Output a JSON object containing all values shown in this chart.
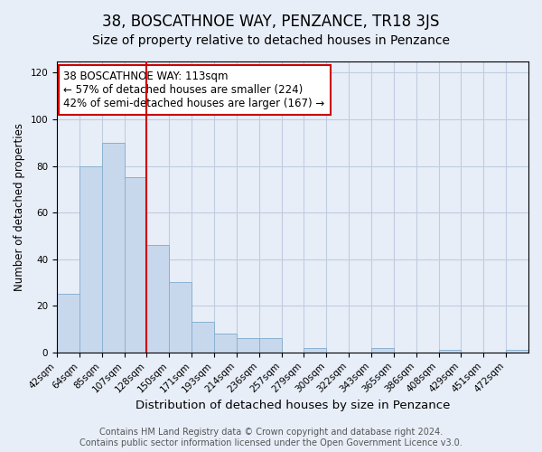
{
  "title": "38, BOSCATHNOE WAY, PENZANCE, TR18 3JS",
  "subtitle": "Size of property relative to detached houses in Penzance",
  "xlabel": "Distribution of detached houses by size in Penzance",
  "ylabel": "Number of detached properties",
  "bar_labels": [
    "42sqm",
    "64sqm",
    "85sqm",
    "107sqm",
    "128sqm",
    "150sqm",
    "171sqm",
    "193sqm",
    "214sqm",
    "236sqm",
    "257sqm",
    "279sqm",
    "300sqm",
    "322sqm",
    "343sqm",
    "365sqm",
    "386sqm",
    "408sqm",
    "429sqm",
    "451sqm",
    "472sqm"
  ],
  "bar_values": [
    25,
    80,
    90,
    75,
    46,
    30,
    13,
    8,
    6,
    6,
    0,
    2,
    0,
    0,
    2,
    0,
    0,
    1,
    0,
    0,
    1
  ],
  "bar_color": "#c8d8ec",
  "bar_edge_color": "#8ab0d0",
  "vline_x": 4.0,
  "vline_color": "#cc0000",
  "annotation_line1": "38 BOSCATHNOE WAY: 113sqm",
  "annotation_line2": "← 57% of detached houses are smaller (224)",
  "annotation_line3": "42% of semi-detached houses are larger (167) →",
  "ylim": [
    0,
    125
  ],
  "yticks": [
    0,
    20,
    40,
    60,
    80,
    100,
    120
  ],
  "footer_line1": "Contains HM Land Registry data © Crown copyright and database right 2024.",
  "footer_line2": "Contains public sector information licensed under the Open Government Licence v3.0.",
  "title_fontsize": 12,
  "subtitle_fontsize": 10,
  "xlabel_fontsize": 9.5,
  "ylabel_fontsize": 8.5,
  "tick_fontsize": 7.5,
  "annotation_fontsize": 8.5,
  "footer_fontsize": 7,
  "bg_color": "#e8eef8",
  "plot_bg_color": "#e8eef8",
  "grid_color": "#c0cce0"
}
